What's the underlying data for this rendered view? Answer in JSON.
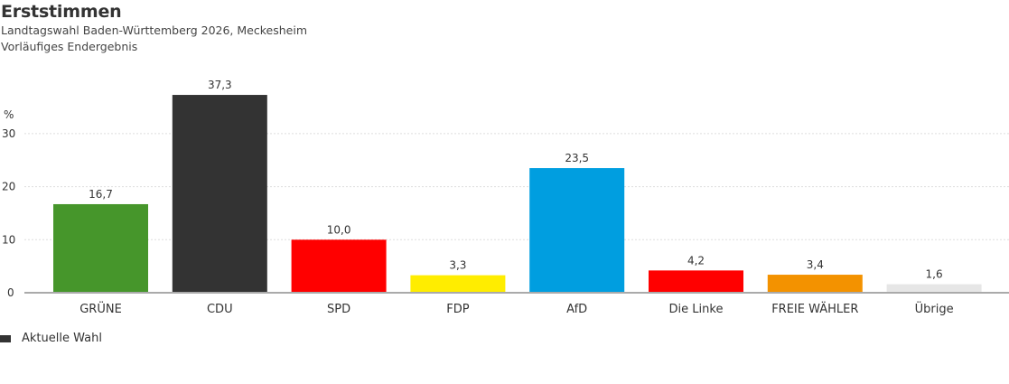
{
  "header": {
    "title": "Erststimmen",
    "subtitle1": "Landtagswahl Baden-Württemberg 2026, Meckesheim",
    "subtitle2": "Vorläufiges Endergebnis"
  },
  "chart_data": {
    "type": "bar",
    "title": "Erststimmen",
    "subtitle": "Landtagswahl Baden-Württemberg 2026, Meckesheim — Vorläufiges Endergebnis",
    "xlabel": "",
    "ylabel": "%",
    "ylim": [
      0,
      30
    ],
    "yticks": [
      0,
      10,
      20,
      30
    ],
    "grid": true,
    "categories": [
      "GRÜNE",
      "CDU",
      "SPD",
      "FDP",
      "AfD",
      "Die Linke",
      "FREIE WÄHLER",
      "Übrige"
    ],
    "values": [
      16.7,
      37.3,
      10.0,
      3.3,
      23.5,
      4.2,
      3.4,
      1.6
    ],
    "value_labels": [
      "16,7",
      "37,3",
      "10,0",
      "3,3",
      "23,5",
      "4,2",
      "3,4",
      "1,6"
    ],
    "colors": [
      "#46962b",
      "#333333",
      "#ff0000",
      "#ffed00",
      "#009ee0",
      "#ff0000",
      "#f39200",
      "#e6e6e6"
    ],
    "legend": [
      {
        "label": "Aktuelle Wahl",
        "color": "#333333"
      }
    ],
    "legend_position": "bottom-left"
  }
}
